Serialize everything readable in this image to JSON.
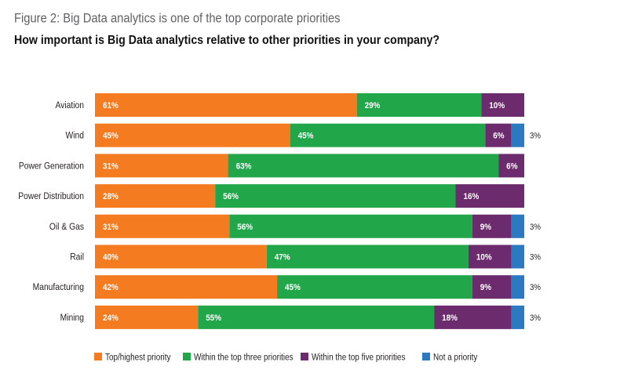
{
  "chart_data": {
    "type": "bar",
    "orientation": "horizontal",
    "stacked": true,
    "title": "Figure 2: Big Data analytics is one of the top corporate priorities",
    "subtitle": "How important is Big Data analytics relative to other priorities in your company?",
    "unit": "%",
    "categories": [
      "Aviation",
      "Wind",
      "Power Generation",
      "Power Distribution",
      "Oil & Gas",
      "Rail",
      "Manufacturing",
      "Mining"
    ],
    "series": [
      {
        "name": "Top/highest priority",
        "color": "#f47b20",
        "values": [
          61,
          45,
          31,
          28,
          31,
          40,
          42,
          24
        ]
      },
      {
        "name": "Within the top three priorities",
        "color": "#21a64a",
        "values": [
          29,
          45,
          63,
          56,
          56,
          47,
          45,
          55
        ]
      },
      {
        "name": "Within the top five priorities",
        "color": "#6b2b6d",
        "values": [
          10,
          6,
          6,
          16,
          9,
          10,
          9,
          18
        ]
      },
      {
        "name": "Not a priority",
        "color": "#2b79c1",
        "values": [
          0,
          3,
          0,
          0,
          3,
          3,
          3,
          3
        ]
      }
    ],
    "legend": "bottom",
    "grid": false
  }
}
